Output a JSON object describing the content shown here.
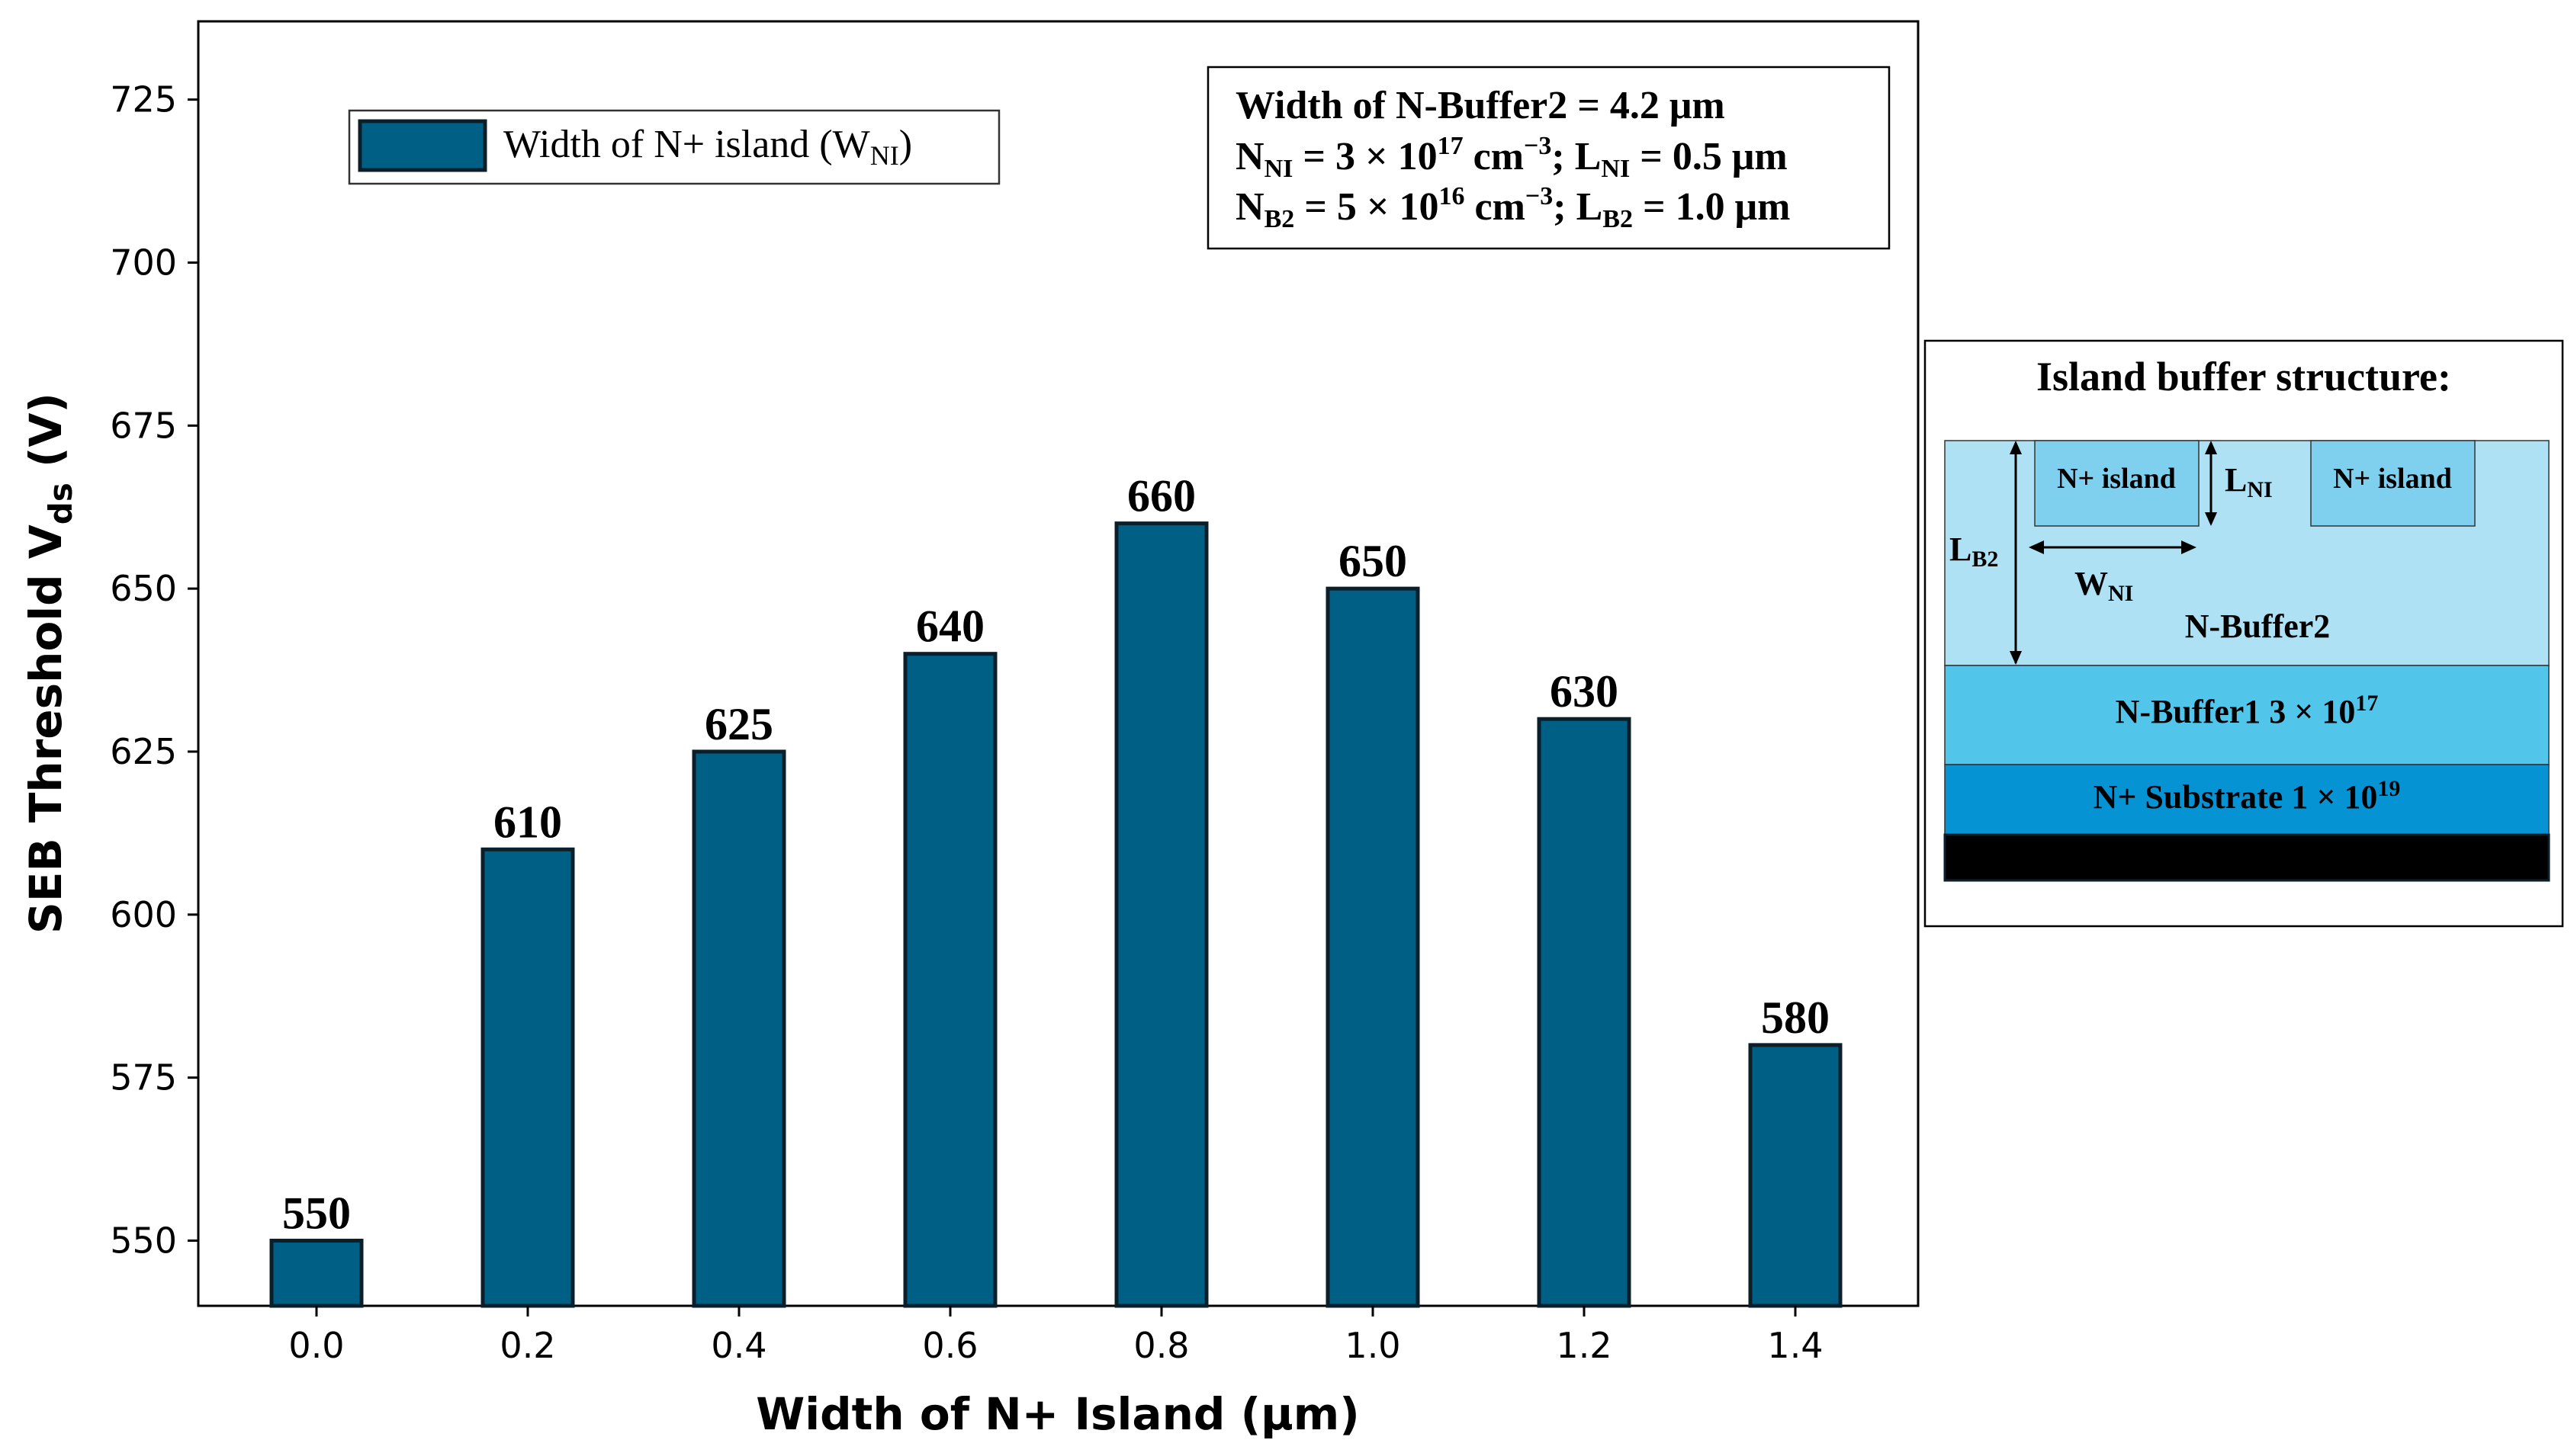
{
  "chart_data": {
    "type": "bar",
    "categories": [
      "0.0",
      "0.2",
      "0.4",
      "0.6",
      "0.8",
      "1.0",
      "1.2",
      "1.4"
    ],
    "values": [
      550,
      610,
      625,
      640,
      660,
      650,
      630,
      580
    ],
    "data_labels": [
      "550",
      "610",
      "625",
      "640",
      "660",
      "650",
      "630",
      "580"
    ],
    "title": "",
    "xlabel": "Width of N+ Island (μm)",
    "ylabel": {
      "main": "SEB Threshold V",
      "sub": "ds",
      "unit": " (V)"
    },
    "ylim": [
      540,
      737
    ],
    "yticks": [
      550,
      575,
      600,
      625,
      650,
      675,
      700,
      725
    ],
    "grid": false,
    "bar_color": "#005F85",
    "bar_edge_color": "#0B1F2A",
    "legend": {
      "position": "top-left",
      "label_main": "Width of N+ island (W",
      "label_sub": "NI",
      "label_end": ")"
    },
    "annotation": {
      "position": "top-right",
      "line1": "Width of N-Buffer2 = 4.2 μm",
      "line2": {
        "a": "N",
        "a_sub": "NI",
        "b": " = 3 × 10",
        "b_sup": "17",
        "c": " cm",
        "c_sup": "−3",
        "d": "; L",
        "d_sub": "NI",
        "e": " = 0.5 μm"
      },
      "line3": {
        "a": "N",
        "a_sub": "B2",
        "b": " = 5 × 10",
        "b_sup": "16",
        "c": " cm",
        "c_sup": "−3",
        "d": "; L",
        "d_sub": "B2",
        "e": " = 1.0 μm"
      }
    }
  },
  "inset": {
    "title": "Island buffer structure:",
    "island_label": "N+ island",
    "l_ni": {
      "main": "L",
      "sub": "NI"
    },
    "l_b2": {
      "main": "L",
      "sub": "B2"
    },
    "w_ni": {
      "main": "W",
      "sub": "NI"
    },
    "buffer2_label": "N-Buffer2",
    "buffer1": {
      "text": "N-Buffer1 3 × 10",
      "sup": "17"
    },
    "substrate": {
      "text": "N+ Substrate 1 × 10",
      "sup": "19"
    },
    "colors": {
      "buffer2": "#ADE1F3",
      "island": "#7FD0EE",
      "buffer1": "#52C6EA",
      "substrate": "#0593D4",
      "contact": "#000000"
    }
  }
}
